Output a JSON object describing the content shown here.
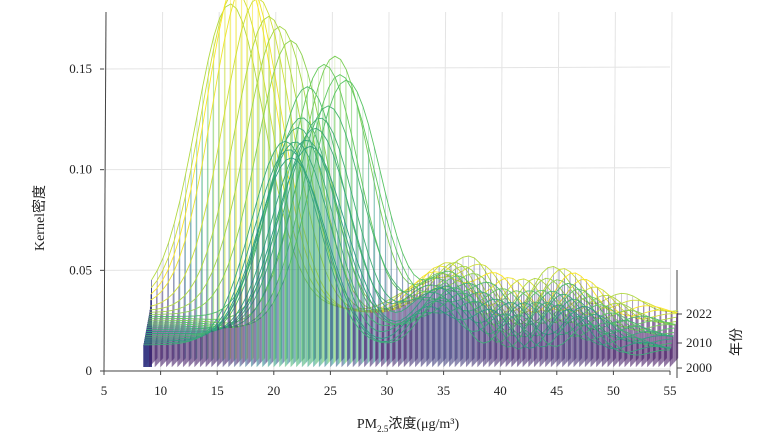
{
  "chart_data": {
    "type": "line",
    "xlabel": "PM2.5浓度(μg/m³)",
    "xlabel_parts": {
      "pre": "PM",
      "sub": "2.5",
      "post": "浓度(μg/m³)"
    },
    "ylabel": "Kernel密度",
    "zlabel": "年份",
    "xlim": [
      5,
      55
    ],
    "ylim": [
      0,
      0.175
    ],
    "x_ticks": [
      "5",
      "10",
      "15",
      "20",
      "25",
      "30",
      "35",
      "40",
      "45",
      "50",
      "55"
    ],
    "y_ticks": [
      "0",
      "0.05",
      "0.10",
      "0.15"
    ],
    "z_ticks": [
      "2000",
      "2010",
      "2022"
    ],
    "years": [
      2000,
      2001,
      2002,
      2003,
      2004,
      2005,
      2006,
      2007,
      2008,
      2009,
      2010,
      2011,
      2012,
      2013,
      2014,
      2015,
      2016,
      2017,
      2018,
      2019,
      2020,
      2021,
      2022,
      2023
    ],
    "colormap": [
      "#440154",
      "#3b528b",
      "#21918c",
      "#5ec962",
      "#fde725"
    ],
    "series": [
      {
        "year": 2000,
        "peak_x": 21.0,
        "peak_density": 0.105
      },
      {
        "year": 2001,
        "peak_x": 21.3,
        "peak_density": 0.1
      },
      {
        "year": 2002,
        "peak_x": 21.5,
        "peak_density": 0.095
      },
      {
        "year": 2003,
        "peak_x": 21.8,
        "peak_density": 0.102
      },
      {
        "year": 2004,
        "peak_x": 22.0,
        "peak_density": 0.108
      },
      {
        "year": 2005,
        "peak_x": 22.3,
        "peak_density": 0.112
      },
      {
        "year": 2006,
        "peak_x": 22.7,
        "peak_density": 0.1
      },
      {
        "year": 2007,
        "peak_x": 23.0,
        "peak_density": 0.096
      },
      {
        "year": 2008,
        "peak_x": 23.4,
        "peak_density": 0.104
      },
      {
        "year": 2009,
        "peak_x": 23.8,
        "peak_density": 0.108
      },
      {
        "year": 2010,
        "peak_x": 24.5,
        "peak_density": 0.113
      },
      {
        "year": 2011,
        "peak_x": 25.5,
        "peak_density": 0.128
      },
      {
        "year": 2012,
        "peak_x": 26.0,
        "peak_density": 0.124
      },
      {
        "year": 2013,
        "peak_x": 25.0,
        "peak_density": 0.135
      },
      {
        "year": 2014,
        "peak_x": 24.0,
        "peak_density": 0.13
      },
      {
        "year": 2015,
        "peak_x": 22.5,
        "peak_density": 0.118
      },
      {
        "year": 2016,
        "peak_x": 21.0,
        "peak_density": 0.14
      },
      {
        "year": 2017,
        "peak_x": 20.0,
        "peak_density": 0.146
      },
      {
        "year": 2018,
        "peak_x": 19.0,
        "peak_density": 0.15
      },
      {
        "year": 2019,
        "peak_x": 18.0,
        "peak_density": 0.158
      },
      {
        "year": 2020,
        "peak_x": 17.0,
        "peak_density": 0.166
      },
      {
        "year": 2021,
        "peak_x": 16.5,
        "peak_density": 0.17
      },
      {
        "year": 2022,
        "peak_x": 16.0,
        "peak_density": 0.158
      },
      {
        "year": 2023,
        "peak_x": 15.5,
        "peak_density": 0.15
      }
    ]
  }
}
